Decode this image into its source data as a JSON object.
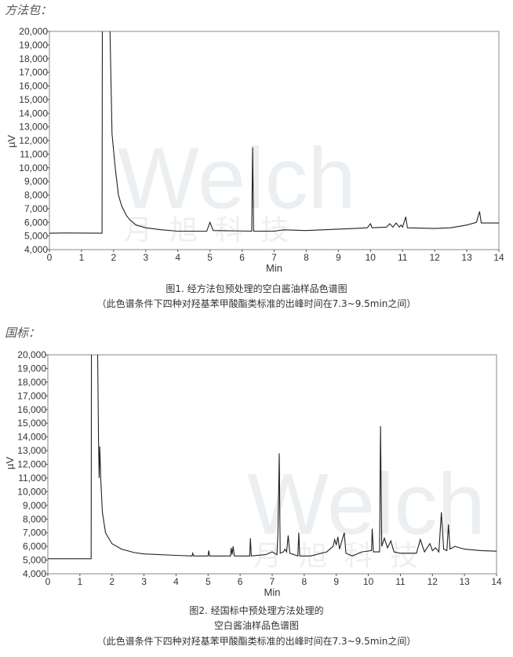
{
  "sections": [
    {
      "heading": "方法包：",
      "captions": [
        "图1. 经方法包预处理的空白酱油样品色谱图",
        "（此色谱条件下四种对羟基苯甲酸酯类标准的出峰时间在7.3~9.5min之间）"
      ]
    },
    {
      "heading": "国标：",
      "captions": [
        "图2. 经国标中预处理方法处理的",
        "空白酱油样品色谱图",
        "（此色谱条件下四种对羟基苯甲酸酯类标准的出峰时间在7.3~9.5min之间）"
      ]
    }
  ],
  "watermark": {
    "text": "Welch",
    "subtext": "月旭科技",
    "color": "#c9d3da"
  },
  "chart_data": [
    {
      "type": "line",
      "xlabel": "Min",
      "ylabel": "µV",
      "xlim": [
        0,
        14
      ],
      "ylim": [
        4000,
        20000
      ],
      "xticks": [
        "0",
        "1",
        "2",
        "3",
        "4",
        "5",
        "6",
        "7",
        "8",
        "9",
        "10",
        "11",
        "12",
        "13",
        "14"
      ],
      "yticks": [
        "4,000",
        "5,000",
        "6,000",
        "7,000",
        "8,000",
        "9,000",
        "10,000",
        "11,000",
        "12,000",
        "13,000",
        "14,000",
        "15,000",
        "16,000",
        "17,000",
        "18,000",
        "19,000",
        "20,000"
      ],
      "grid": false,
      "line_color": "#222222",
      "points": [
        [
          0,
          5200
        ],
        [
          0.5,
          5220
        ],
        [
          1.64,
          5200
        ],
        [
          1.65,
          21000
        ],
        [
          1.88,
          21000
        ],
        [
          1.95,
          12500
        ],
        [
          2.05,
          10000
        ],
        [
          2.15,
          8000
        ],
        [
          2.25,
          7200
        ],
        [
          2.4,
          6500
        ],
        [
          2.5,
          6200
        ],
        [
          2.7,
          5800
        ],
        [
          3,
          5600
        ],
        [
          3.5,
          5450
        ],
        [
          4,
          5350
        ],
        [
          4.9,
          5350
        ],
        [
          5,
          6000
        ],
        [
          5.1,
          5400
        ],
        [
          6.3,
          5350
        ],
        [
          6.33,
          11500
        ],
        [
          6.36,
          5350
        ],
        [
          7,
          5350
        ],
        [
          7.3,
          5450
        ],
        [
          8,
          5400
        ],
        [
          9,
          5500
        ],
        [
          9.5,
          5550
        ],
        [
          9.9,
          5600
        ],
        [
          10,
          5900
        ],
        [
          10.05,
          5600
        ],
        [
          10.5,
          5650
        ],
        [
          10.6,
          5900
        ],
        [
          10.7,
          5650
        ],
        [
          10.8,
          5950
        ],
        [
          10.9,
          5650
        ],
        [
          10.95,
          5800
        ],
        [
          11,
          5650
        ],
        [
          11.1,
          6400
        ],
        [
          11.15,
          5600
        ],
        [
          12,
          5550
        ],
        [
          12.5,
          5600
        ],
        [
          13,
          5800
        ],
        [
          13.3,
          6000
        ],
        [
          13.4,
          6800
        ],
        [
          13.45,
          5950
        ],
        [
          14,
          5950
        ]
      ]
    },
    {
      "type": "line",
      "xlabel": "Min",
      "ylabel": "µV",
      "xlim": [
        0,
        14
      ],
      "ylim": [
        4000,
        20000
      ],
      "xticks": [
        "0",
        "1",
        "2",
        "3",
        "4",
        "5",
        "6",
        "7",
        "8",
        "9",
        "10",
        "11",
        "12",
        "13",
        "14"
      ],
      "yticks": [
        "4,000",
        "5,000",
        "6,000",
        "7,000",
        "8,000",
        "9,000",
        "10,000",
        "11,000",
        "12,000",
        "13,000",
        "14,000",
        "15,000",
        "16,000",
        "17,000",
        "18,000",
        "19,000",
        "20,000"
      ],
      "grid": false,
      "line_color": "#222222",
      "points": [
        [
          0,
          5100
        ],
        [
          1.35,
          5100
        ],
        [
          1.36,
          21000
        ],
        [
          1.55,
          21000
        ],
        [
          1.58,
          13800
        ],
        [
          1.6,
          11000
        ],
        [
          1.62,
          13300
        ],
        [
          1.65,
          11000
        ],
        [
          1.7,
          8500
        ],
        [
          1.8,
          7000
        ],
        [
          2,
          6200
        ],
        [
          2.3,
          5800
        ],
        [
          2.7,
          5550
        ],
        [
          3,
          5450
        ],
        [
          4,
          5350
        ],
        [
          4.5,
          5300
        ],
        [
          4.52,
          5500
        ],
        [
          4.55,
          5300
        ],
        [
          5,
          5300
        ],
        [
          5.02,
          5700
        ],
        [
          5.05,
          5300
        ],
        [
          5.7,
          5300
        ],
        [
          5.72,
          5900
        ],
        [
          5.75,
          5400
        ],
        [
          5.78,
          6000
        ],
        [
          5.82,
          5300
        ],
        [
          6.3,
          5300
        ],
        [
          6.32,
          6600
        ],
        [
          6.35,
          5300
        ],
        [
          6.8,
          5400
        ],
        [
          7.0,
          5600
        ],
        [
          7.15,
          5400
        ],
        [
          7.18,
          7100
        ],
        [
          7.22,
          12800
        ],
        [
          7.25,
          5500
        ],
        [
          7.35,
          5600
        ],
        [
          7.4,
          5800
        ],
        [
          7.45,
          5600
        ],
        [
          7.5,
          6800
        ],
        [
          7.55,
          5500
        ],
        [
          7.8,
          5300
        ],
        [
          7.83,
          7000
        ],
        [
          7.86,
          5300
        ],
        [
          8.2,
          5300
        ],
        [
          8.7,
          5600
        ],
        [
          8.9,
          6000
        ],
        [
          8.95,
          6500
        ],
        [
          9.0,
          6100
        ],
        [
          9.05,
          6700
        ],
        [
          9.1,
          5800
        ],
        [
          9.15,
          6200
        ],
        [
          9.25,
          7000
        ],
        [
          9.3,
          5500
        ],
        [
          9.5,
          5300
        ],
        [
          9.8,
          5600
        ],
        [
          10.1,
          5700
        ],
        [
          10.12,
          7300
        ],
        [
          10.16,
          5600
        ],
        [
          10.35,
          5600
        ],
        [
          10.38,
          14800
        ],
        [
          10.42,
          6000
        ],
        [
          10.5,
          6600
        ],
        [
          10.6,
          5900
        ],
        [
          10.7,
          6400
        ],
        [
          10.8,
          5600
        ],
        [
          11,
          5500
        ],
        [
          11.5,
          5500
        ],
        [
          11.62,
          6500
        ],
        [
          11.75,
          5600
        ],
        [
          11.92,
          6200
        ],
        [
          12,
          5700
        ],
        [
          12.1,
          5900
        ],
        [
          12.2,
          5600
        ],
        [
          12.28,
          8500
        ],
        [
          12.35,
          5800
        ],
        [
          12.45,
          5700
        ],
        [
          12.5,
          7600
        ],
        [
          12.55,
          5800
        ],
        [
          12.7,
          6000
        ],
        [
          13,
          5800
        ],
        [
          13.5,
          5700
        ],
        [
          14,
          5650
        ]
      ]
    }
  ]
}
